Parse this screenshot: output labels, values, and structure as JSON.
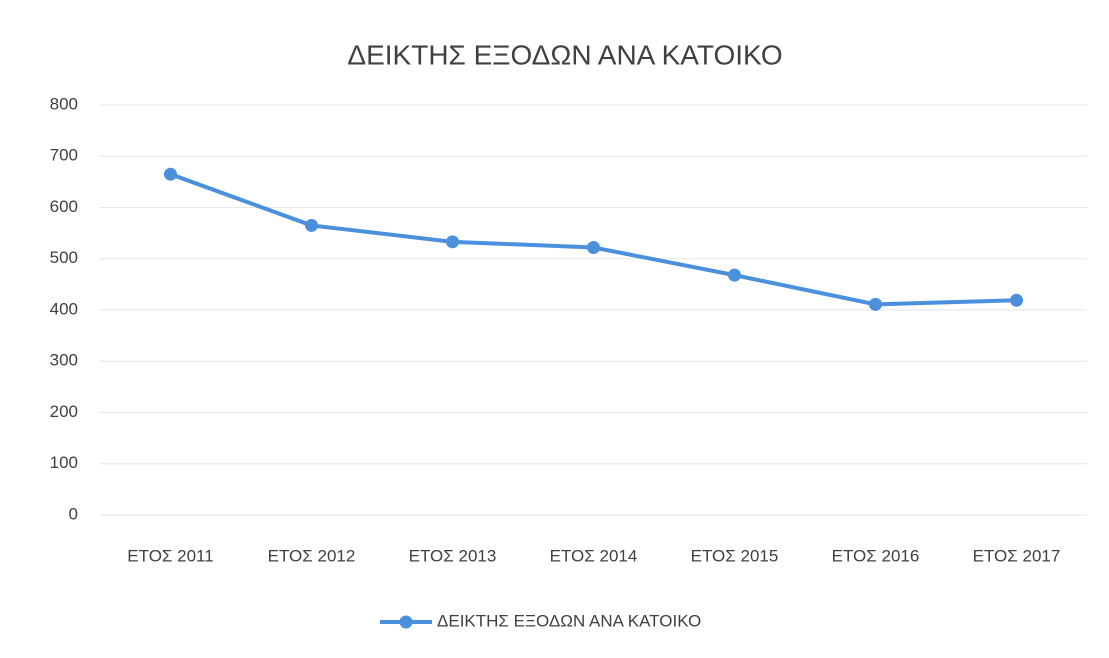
{
  "chart_data": {
    "type": "line",
    "title": "ΔΕΙΚΤΗΣ ΕΞΟΔΩΝ ΑΝΑ ΚΑΤΟΙΚΟ",
    "categories": [
      "ΕΤΟΣ 2011",
      "ΕΤΟΣ 2012",
      "ΕΤΟΣ 2013",
      "ΕΤΟΣ 2014",
      "ΕΤΟΣ 2015",
      "ΕΤΟΣ 2016",
      "ΕΤΟΣ 2017"
    ],
    "series": [
      {
        "name": "ΔΕΙΚΤΗΣ ΕΞΟΔΩΝ ΑΝΑ ΚΑΤΟΙΚΟ",
        "color": "#4a90dc",
        "values": [
          665,
          565,
          533,
          522,
          468,
          411,
          419
        ]
      }
    ],
    "ylim": [
      0,
      800
    ],
    "yticks": [
      0,
      100,
      200,
      300,
      400,
      500,
      600,
      700,
      800
    ],
    "grid": true,
    "legend": "bottom"
  }
}
